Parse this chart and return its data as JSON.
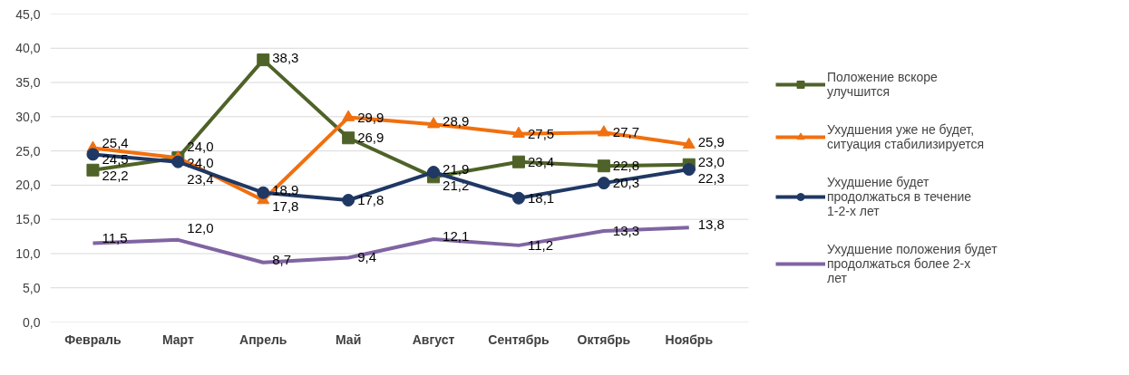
{
  "chart_data": {
    "type": "line",
    "categories": [
      "Февраль",
      "Март",
      "Апрель",
      "Май",
      "Август",
      "Сентябрь",
      "Октябрь",
      "Ноябрь"
    ],
    "ylim": [
      0,
      45
    ],
    "yticks": [
      {
        "value": 0,
        "label": "0,0"
      },
      {
        "value": 5,
        "label": "5,0"
      },
      {
        "value": 10,
        "label": "10,0"
      },
      {
        "value": 15,
        "label": "15,0"
      },
      {
        "value": 20,
        "label": "20,0"
      },
      {
        "value": 25,
        "label": "25,0"
      },
      {
        "value": 30,
        "label": "30,0"
      },
      {
        "value": 35,
        "label": "35,0"
      },
      {
        "value": 40,
        "label": "40,0"
      },
      {
        "value": 45,
        "label": "45,0"
      }
    ],
    "grid": "y",
    "legend": "right",
    "series": [
      {
        "name": "Положение вскоре улучшится",
        "color": "#4f6228",
        "marker": "square",
        "values": [
          22.2,
          24.0,
          38.3,
          26.9,
          21.2,
          23.4,
          22.8,
          23.0
        ],
        "value_labels": [
          "22,2",
          "24,0",
          "38,3",
          "26,9",
          "21,2",
          "23,4",
          "22,8",
          "23,0"
        ]
      },
      {
        "name": "Ухудшения уже не будет, ситуация стабилизируется",
        "color": "#f0700f",
        "marker": "triangle",
        "values": [
          25.4,
          24.0,
          17.8,
          29.9,
          28.9,
          27.5,
          27.7,
          25.9
        ],
        "value_labels": [
          "25,4",
          "24,0",
          "17,8",
          "29,9",
          "28,9",
          "27,5",
          "27,7",
          "25,9"
        ]
      },
      {
        "name": "Ухудшение будет продолжаться в течение 1-2-х лет",
        "color": "#1f3864",
        "marker": "circle",
        "values": [
          24.5,
          23.4,
          18.9,
          17.8,
          21.9,
          18.1,
          20.3,
          22.3
        ],
        "value_labels": [
          "24,5",
          "23,4",
          "18,9",
          "17,8",
          "21,9",
          "18,1",
          "20,3",
          "22,3"
        ]
      },
      {
        "name": "Ухудшение положения будет продолжаться более 2-х лет",
        "color": "#8064a2",
        "marker": "none",
        "values": [
          11.5,
          12.0,
          8.7,
          9.4,
          12.1,
          11.2,
          13.3,
          13.8
        ],
        "value_labels": [
          "11,5",
          "12,0",
          "8,7",
          "9,4",
          "12,1",
          "11,2",
          "13,3",
          "13,8"
        ]
      }
    ]
  }
}
